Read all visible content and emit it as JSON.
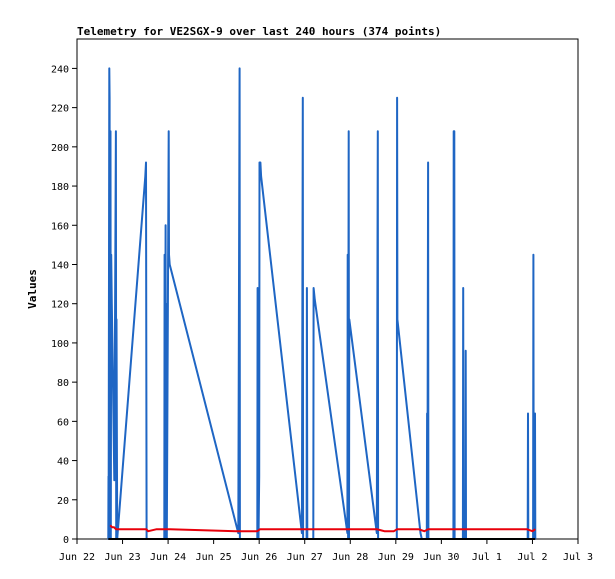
{
  "chart_data": {
    "type": "line",
    "title": "Telemetry for VE2SGX-9 over last 240 hours (374 points)",
    "ylabel": "Values",
    "xlabel": "",
    "xlim": [
      "Jun 22",
      "Jul 3"
    ],
    "ylim": [
      0,
      255
    ],
    "grid": false,
    "legend": "none",
    "x_ticks": [
      "Jun 22",
      "Jun 23",
      "Jun 24",
      "Jun 25",
      "Jun 26",
      "Jun 27",
      "Jun 28",
      "Jun 29",
      "Jun 30",
      "Jul 1",
      "Jul 2",
      "Jul 3"
    ],
    "y_ticks": [
      0,
      20,
      40,
      60,
      80,
      100,
      120,
      140,
      160,
      180,
      200,
      220,
      240
    ],
    "series": [
      {
        "color": "#1f66c4",
        "points": [
          [
            "Jun 22 16:30",
            0
          ],
          [
            "Jun 22 16:35",
            32
          ],
          [
            "Jun 22 16:40",
            0
          ],
          [
            "Jun 22 17:00",
            240
          ],
          [
            "Jun 22 17:10",
            225
          ],
          [
            "Jun 22 17:20",
            0
          ],
          [
            "Jun 22 17:40",
            208
          ],
          [
            "Jun 22 17:50",
            0
          ],
          [
            "Jun 22 18:00",
            145
          ],
          [
            "Jun 22 18:20",
            120
          ],
          [
            "Jun 22 18:40",
            100
          ],
          [
            "Jun 22 19:10",
            64
          ],
          [
            "Jun 22 19:40",
            30
          ],
          [
            "Jun 22 20:30",
            208
          ],
          [
            "Jun 22 20:40",
            0
          ],
          [
            "Jun 22 20:50",
            112
          ],
          [
            "Jun 22 21:10",
            0
          ],
          [
            "Jun 23 12:00",
            185
          ],
          [
            "Jun 23 12:20",
            192
          ],
          [
            "Jun 23 12:40",
            0
          ],
          [
            "Jun 23 22:00",
            0
          ],
          [
            "Jun 23 22:10",
            145
          ],
          [
            "Jun 23 22:20",
            0
          ],
          [
            "Jun 23 22:40",
            160
          ],
          [
            "Jun 23 22:50",
            0
          ],
          [
            "Jun 23 23:00",
            120
          ],
          [
            "Jun 23 23:10",
            40
          ],
          [
            "Jun 23 23:20",
            0
          ],
          [
            "Jun 24 00:20",
            208
          ],
          [
            "Jun 24 00:30",
            145
          ],
          [
            "Jun 24 00:50",
            140
          ],
          [
            "Jun 25 13:00",
            3
          ],
          [
            "Jun 25 13:40",
            240
          ],
          [
            "Jun 25 13:50",
            0
          ],
          [
            "Jun 25 23:00",
            0
          ],
          [
            "Jun 25 23:10",
            128
          ],
          [
            "Jun 25 23:20",
            0
          ],
          [
            "Jun 25 23:30",
            96
          ],
          [
            "Jun 25 23:40",
            0
          ],
          [
            "Jun 26 00:00",
            32
          ],
          [
            "Jun 26 00:10",
            192
          ],
          [
            "Jun 26 00:40",
            192
          ],
          [
            "Jun 26 01:00",
            185
          ],
          [
            "Jun 26 22:30",
            3
          ],
          [
            "Jun 26 23:00",
            225
          ],
          [
            "Jun 26 23:10",
            0
          ],
          [
            "Jun 27 01:00",
            0
          ],
          [
            "Jun 27 01:10",
            128
          ],
          [
            "Jun 27 01:20",
            0
          ],
          [
            "Jun 27 04:30",
            0
          ],
          [
            "Jun 27 04:40",
            128
          ],
          [
            "Jun 27 05:20",
            122
          ],
          [
            "Jun 27 22:30",
            3
          ],
          [
            "Jun 27 22:40",
            145
          ],
          [
            "Jun 27 22:50",
            0
          ],
          [
            "Jun 27 23:10",
            208
          ],
          [
            "Jun 27 23:20",
            0
          ],
          [
            "Jun 27 23:30",
            112
          ],
          [
            "Jun 28 14:00",
            3
          ],
          [
            "Jun 28 14:30",
            208
          ],
          [
            "Jun 28 14:40",
            0
          ],
          [
            "Jun 29 00:30",
            0
          ],
          [
            "Jun 29 00:40",
            225
          ],
          [
            "Jun 29 00:50",
            112
          ],
          [
            "Jun 29 13:00",
            3
          ],
          [
            "Jun 29 13:40",
            0
          ],
          [
            "Jun 29 16:20",
            0
          ],
          [
            "Jun 29 16:30",
            64
          ],
          [
            "Jun 29 16:40",
            0
          ],
          [
            "Jun 29 17:00",
            192
          ],
          [
            "Jun 29 17:10",
            0
          ],
          [
            "Jun 30 06:20",
            0
          ],
          [
            "Jun 30 06:30",
            208
          ],
          [
            "Jun 30 06:50",
            208
          ],
          [
            "Jun 30 07:00",
            0
          ],
          [
            "Jun 30 11:20",
            0
          ],
          [
            "Jun 30 11:30",
            128
          ],
          [
            "Jun 30 11:40",
            0
          ],
          [
            "Jun 30 12:40",
            0
          ],
          [
            "Jun 30 12:50",
            96
          ],
          [
            "Jun 30 13:00",
            0
          ],
          [
            "Jul 1 21:30",
            0
          ],
          [
            "Jul 1 21:40",
            64
          ],
          [
            "Jul 1 21:50",
            0
          ],
          [
            "Jul 2 00:20",
            0
          ],
          [
            "Jul 2 00:30",
            145
          ],
          [
            "Jul 2 00:40",
            0
          ],
          [
            "Jul 2 01:10",
            0
          ],
          [
            "Jul 2 01:20",
            64
          ],
          [
            "Jul 2 01:30",
            0
          ]
        ]
      },
      {
        "color": "#e8000b",
        "points": [
          [
            "Jun 22 17:30",
            7
          ],
          [
            "Jun 22 18:30",
            6
          ],
          [
            "Jun 22 19:30",
            6
          ],
          [
            "Jun 22 20:30",
            5
          ],
          [
            "Jun 23 12:30",
            5
          ],
          [
            "Jun 23 13:30",
            4
          ],
          [
            "Jun 23 18:00",
            5
          ],
          [
            "Jun 24 01:00",
            5
          ],
          [
            "Jun 25 12:00",
            4
          ],
          [
            "Jun 25 23:00",
            4
          ],
          [
            "Jun 26 00:30",
            5
          ],
          [
            "Jun 27 12:00",
            5
          ],
          [
            "Jun 28 14:00",
            5
          ],
          [
            "Jun 28 18:00",
            4
          ],
          [
            "Jun 28 23:00",
            4
          ],
          [
            "Jun 29 00:40",
            5
          ],
          [
            "Jun 29 12:00",
            5
          ],
          [
            "Jun 29 15:00",
            4
          ],
          [
            "Jun 29 17:00",
            5
          ],
          [
            "Jul 1 12:00",
            5
          ],
          [
            "Jul 1 21:00",
            5
          ],
          [
            "Jul 2 00:00",
            4
          ],
          [
            "Jul 2 01:30",
            5
          ]
        ]
      },
      {
        "color": "#000000",
        "points": [
          [
            "Jun 22 16:30",
            0
          ],
          [
            "Jul 2 01:30",
            0
          ]
        ]
      }
    ]
  }
}
